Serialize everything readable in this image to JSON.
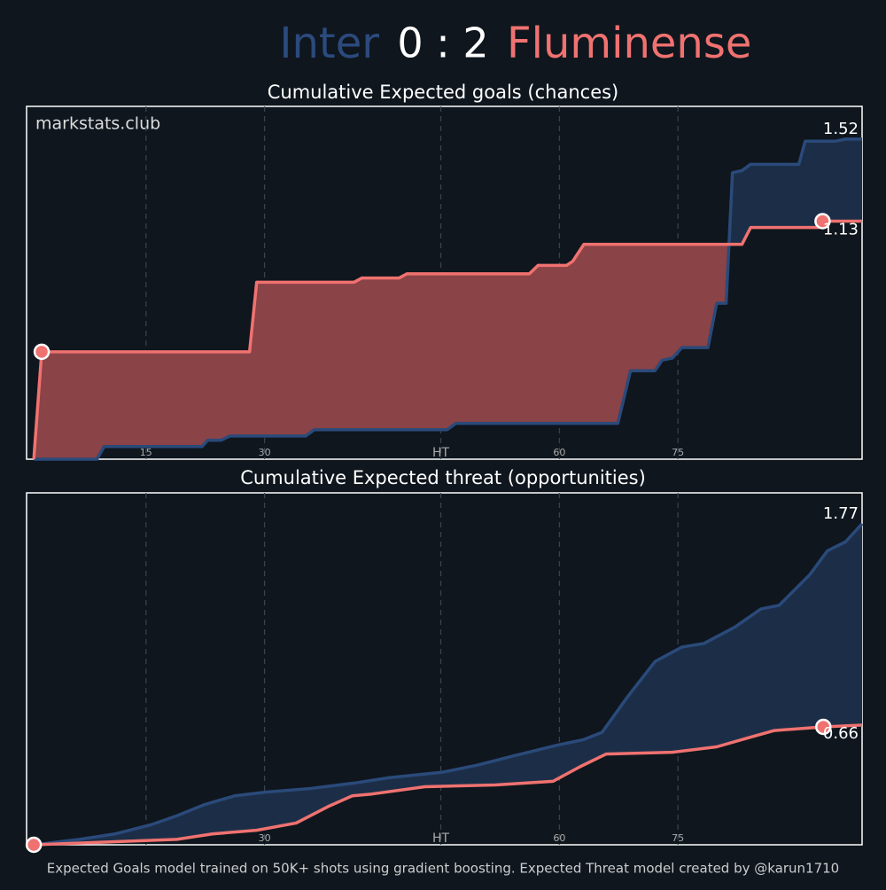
{
  "header": {
    "home": "Inter",
    "score": "0 : 2",
    "away": "Fluminense"
  },
  "watermark": "markstats.club",
  "footer": "Expected Goals model trained on 50K+ shots using gradient boosting. Expected Threat model created by @karun1710",
  "chart_data": [
    {
      "type": "line",
      "title": "Cumulative Expected goals (chances)",
      "xlim": [
        0,
        105.6
      ],
      "ylim": [
        0,
        1.675
      ],
      "xticks": [
        15,
        30,
        {
          "value": 52.3,
          "label": "HT"
        },
        {
          "value": 67.3,
          "label": "60"
        },
        {
          "value": 82.3,
          "label": "75"
        }
      ],
      "grid": true,
      "series": [
        {
          "color": "#2a4a7a",
          "fill": "#1c2e47",
          "x": [
            0.8,
            8.8,
            9.7,
            22.1,
            22.8,
            24.5,
            25.6,
            35.2,
            36.3,
            53.1,
            54.2,
            74.7,
            76.3,
            79.4,
            80.3,
            81.6,
            82.8,
            86.1,
            87.2,
            88.4,
            89.2,
            90.4,
            91.5,
            97.6,
            98.4,
            102.3,
            103.5,
            105.6
          ],
          "values": [
            0,
            0,
            0.06,
            0.06,
            0.09,
            0.09,
            0.11,
            0.11,
            0.14,
            0.14,
            0.17,
            0.17,
            0.42,
            0.42,
            0.47,
            0.48,
            0.53,
            0.53,
            0.74,
            0.74,
            1.36,
            1.37,
            1.4,
            1.4,
            1.51,
            1.51,
            1.52,
            1.52
          ]
        },
        {
          "color": "#f07270",
          "fill": "#8a4346",
          "x": [
            0.8,
            1.8,
            28.1,
            29.0,
            41.3,
            42.3,
            47.0,
            48.0,
            63.5,
            64.6,
            68.2,
            69.0,
            70.4,
            90.4,
            91.5,
            100.1,
            100.6,
            105.6
          ],
          "values": [
            0,
            0.51,
            0.51,
            0.84,
            0.84,
            0.86,
            0.86,
            0.88,
            0.88,
            0.92,
            0.92,
            0.94,
            1.02,
            1.02,
            1.1,
            1.1,
            1.13,
            1.13
          ]
        }
      ]
    },
    {
      "type": "line",
      "title": "Cumulative Expected threat (opportunities)",
      "xlim": [
        0,
        105.6
      ],
      "ylim": [
        0,
        1.94
      ],
      "xticks": [
        15,
        30,
        {
          "value": 52.3,
          "label": "HT"
        },
        {
          "value": 67.3,
          "label": "60"
        },
        {
          "value": 82.3,
          "label": "75"
        }
      ],
      "grid": true,
      "series": [
        {
          "color": "#2a4a7a",
          "fill": "#1c2e47",
          "x": [
            0.8,
            6.6,
            11.1,
            15.6,
            18.9,
            22.3,
            26.2,
            30.1,
            35.7,
            41.3,
            45.8,
            52.5,
            57.0,
            61.5,
            67.1,
            70.4,
            72.7,
            76.0,
            79.4,
            82.8,
            85.6,
            89.5,
            92.8,
            95.1,
            99.0,
            101.2,
            103.5,
            105.6
          ],
          "values": [
            0,
            0.03,
            0.06,
            0.11,
            0.16,
            0.22,
            0.27,
            0.29,
            0.31,
            0.34,
            0.37,
            0.4,
            0.44,
            0.49,
            0.55,
            0.58,
            0.62,
            0.82,
            1.01,
            1.09,
            1.11,
            1.2,
            1.3,
            1.32,
            1.49,
            1.62,
            1.67,
            1.77
          ]
        },
        {
          "color": "#f07270",
          "fill": "#8a4346",
          "x": [
            0.8,
            18.9,
            23.4,
            29.0,
            34.0,
            38.0,
            41.1,
            43.6,
            50.3,
            59.2,
            66.5,
            69.9,
            73.2,
            81.6,
            87.2,
            91.2,
            94.5,
            100.7,
            105.6
          ],
          "values": [
            0,
            0.03,
            0.06,
            0.08,
            0.12,
            0.21,
            0.27,
            0.28,
            0.32,
            0.33,
            0.35,
            0.43,
            0.5,
            0.51,
            0.54,
            0.59,
            0.63,
            0.65,
            0.66
          ]
        }
      ]
    }
  ]
}
